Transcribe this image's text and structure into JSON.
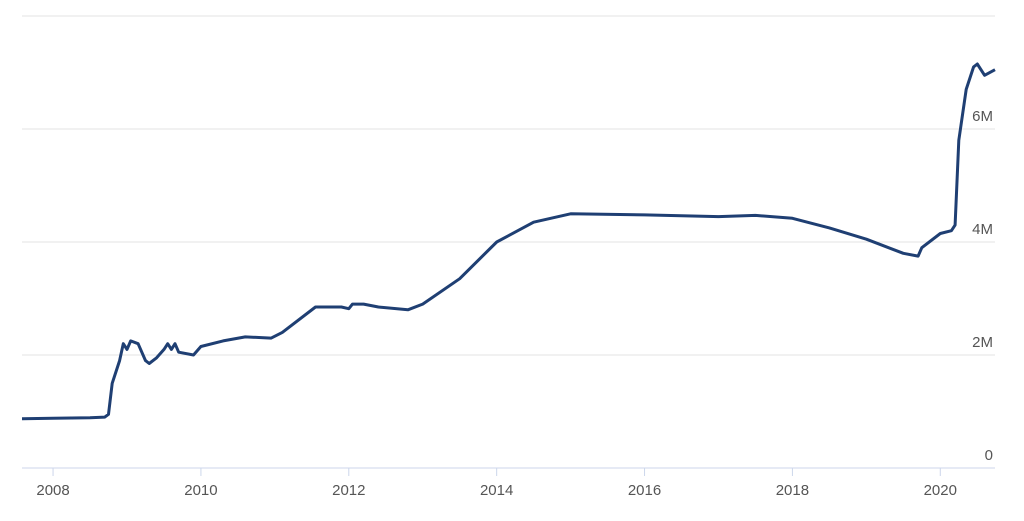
{
  "chart_data": {
    "type": "line",
    "x": [
      2007.58,
      2008.0,
      2008.5,
      2008.7,
      2008.75,
      2008.8,
      2008.9,
      2008.95,
      2009.0,
      2009.05,
      2009.15,
      2009.25,
      2009.3,
      2009.4,
      2009.5,
      2009.55,
      2009.6,
      2009.65,
      2009.7,
      2009.9,
      2010.0,
      2010.3,
      2010.6,
      2010.95,
      2011.1,
      2011.55,
      2011.9,
      2012.0,
      2012.05,
      2012.2,
      2012.4,
      2012.8,
      2013.0,
      2013.5,
      2014.0,
      2014.5,
      2015.0,
      2016.0,
      2017.0,
      2017.5,
      2018.0,
      2018.5,
      2019.0,
      2019.5,
      2019.7,
      2019.75,
      2020.0,
      2020.15,
      2020.2,
      2020.25,
      2020.35,
      2020.45,
      2020.5,
      2020.6,
      2020.74
    ],
    "series": [
      {
        "color": "#1f3f73",
        "values": [
          870000,
          880000,
          890000,
          900000,
          950000,
          1500000,
          1900000,
          2200000,
          2100000,
          2250000,
          2200000,
          1900000,
          1850000,
          1950000,
          2100000,
          2200000,
          2100000,
          2200000,
          2050000,
          2000000,
          2150000,
          2250000,
          2320000,
          2300000,
          2400000,
          2850000,
          2850000,
          2820000,
          2900000,
          2900000,
          2850000,
          2800000,
          2900000,
          3350000,
          4000000,
          4350000,
          4500000,
          4480000,
          4450000,
          4470000,
          4420000,
          4250000,
          4050000,
          3800000,
          3750000,
          3900000,
          4150000,
          4200000,
          4300000,
          5800000,
          6700000,
          7100000,
          7150000,
          6950000,
          7050000
        ]
      }
    ],
    "xlim": [
      2007.58,
      2020.74
    ],
    "xticks": [
      2008,
      2010,
      2012,
      2014,
      2016,
      2018,
      2020
    ],
    "ylim": [
      0,
      8000000
    ],
    "yticks": [
      0,
      {
        "value": 2000000,
        "label": "2M"
      },
      {
        "value": 4000000,
        "label": "4M"
      },
      {
        "value": 6000000,
        "label": "6M"
      }
    ],
    "grid": true
  }
}
